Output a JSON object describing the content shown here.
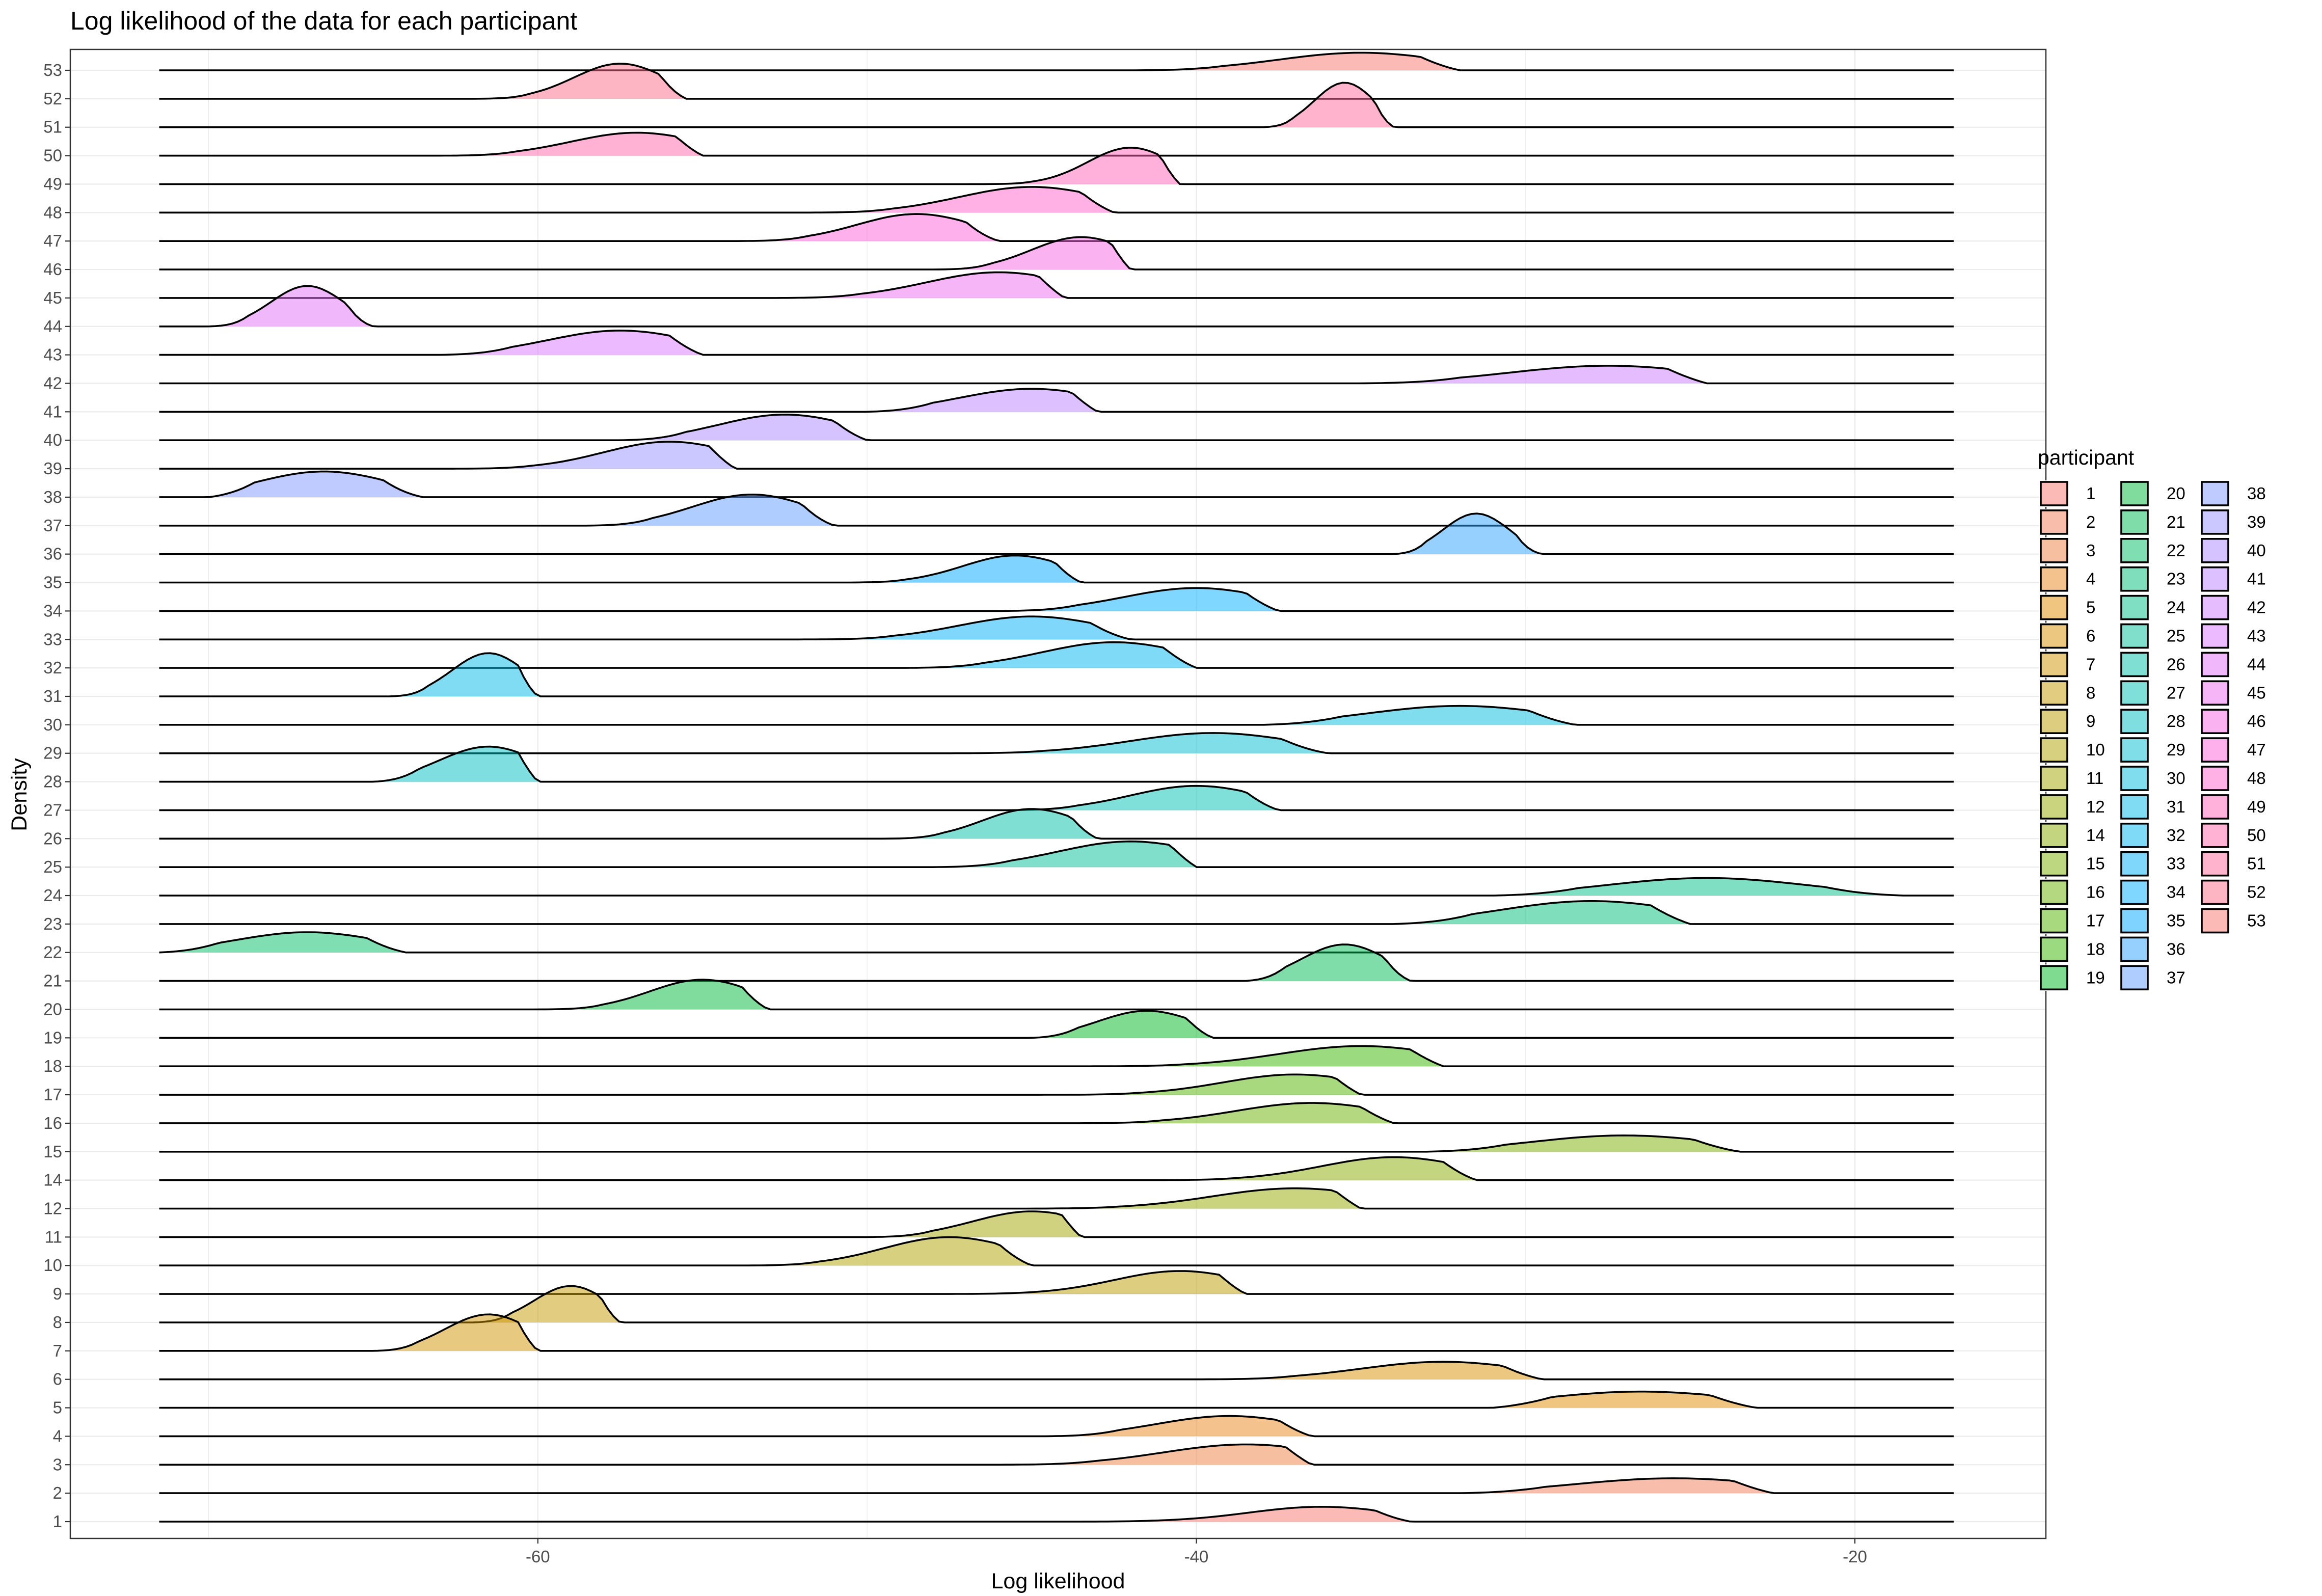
{
  "chart_data": {
    "type": "ridgeline",
    "title": "Log likelihood of the data for each participant",
    "xlabel": "Log likelihood",
    "ylabel": "Density",
    "xlim": [
      -74.2,
      -14.2
    ],
    "x_range": [
      -71.5,
      -17
    ],
    "x_ticks": [
      -60,
      -40,
      -20
    ],
    "x_tick_labels": [
      "-60",
      "-40",
      "-20"
    ],
    "grid": true,
    "legend_title": "participant",
    "legend_position": "right",
    "series": [
      {
        "name": "1",
        "color": "#F8766D",
        "peak": -36.2,
        "spread": 2.2,
        "height": 0.55,
        "lo": -45,
        "hi": -33.5
      },
      {
        "name": "2",
        "color": "#F37B59",
        "peak": -25.5,
        "spread": 3.0,
        "height": 0.55,
        "lo": -32,
        "hi": -22.5
      },
      {
        "name": "3",
        "color": "#ED8141",
        "peak": -38.5,
        "spread": 2.5,
        "height": 0.75,
        "lo": -46,
        "hi": -36.5
      },
      {
        "name": "4",
        "color": "#E7861B",
        "peak": -39,
        "spread": 2.2,
        "height": 0.75,
        "lo": -44.5,
        "hi": -36.5
      },
      {
        "name": "5",
        "color": "#DF8C00",
        "peak": -26.5,
        "spread": 3.0,
        "height": 0.6,
        "lo": -31,
        "hi": -23
      },
      {
        "name": "6",
        "color": "#D79000",
        "peak": -32.5,
        "spread": 2.5,
        "height": 0.65,
        "lo": -40,
        "hi": -29.5
      },
      {
        "name": "7",
        "color": "#CF9400",
        "peak": -61.5,
        "spread": 1.3,
        "height": 1.35,
        "lo": -65,
        "hi": -60
      },
      {
        "name": "8",
        "color": "#C59900",
        "peak": -59,
        "spread": 1.1,
        "height": 1.35,
        "lo": -62,
        "hi": -57.5
      },
      {
        "name": "9",
        "color": "#BB9D00",
        "peak": -40.5,
        "spread": 2.0,
        "height": 0.85,
        "lo": -49,
        "hi": -38.5
      },
      {
        "name": "10",
        "color": "#B0A100",
        "peak": -47.5,
        "spread": 2.0,
        "height": 1.05,
        "lo": -54,
        "hi": -45
      },
      {
        "name": "11",
        "color": "#A3A500",
        "peak": -45,
        "spread": 1.8,
        "height": 0.95,
        "lo": -50,
        "hi": -43.5
      },
      {
        "name": "12",
        "color": "#96A900",
        "peak": -37,
        "spread": 2.5,
        "height": 0.75,
        "lo": -46,
        "hi": -35
      },
      {
        "name": "14",
        "color": "#88AC00",
        "peak": -34,
        "spread": 2.2,
        "height": 0.85,
        "lo": -42,
        "hi": -31.5
      },
      {
        "name": "15",
        "color": "#79AF00",
        "peak": -27,
        "spread": 2.8,
        "height": 0.6,
        "lo": -33,
        "hi": -23.5
      },
      {
        "name": "16",
        "color": "#68B200",
        "peak": -36.5,
        "spread": 2.3,
        "height": 0.75,
        "lo": -44,
        "hi": -34
      },
      {
        "name": "17",
        "color": "#53B400",
        "peak": -37,
        "spread": 2.2,
        "height": 0.75,
        "lo": -45,
        "hi": -35
      },
      {
        "name": "18",
        "color": "#39B600",
        "peak": -35,
        "spread": 2.5,
        "height": 0.75,
        "lo": -44,
        "hi": -32.5
      },
      {
        "name": "19",
        "color": "#00B81F",
        "peak": -41.5,
        "spread": 1.5,
        "height": 1.0,
        "lo": -45,
        "hi": -39.5
      },
      {
        "name": "20",
        "color": "#00BA3C",
        "peak": -55,
        "spread": 1.6,
        "height": 1.1,
        "lo": -60,
        "hi": -53
      },
      {
        "name": "21",
        "color": "#00BB53",
        "peak": -35.5,
        "spread": 1.3,
        "height": 1.35,
        "lo": -38.5,
        "hi": -33.5
      },
      {
        "name": "22",
        "color": "#00BD66",
        "peak": -67,
        "spread": 2.2,
        "height": 0.75,
        "lo": -71.5,
        "hi": -64
      },
      {
        "name": "23",
        "color": "#00BE77",
        "peak": -28,
        "spread": 2.8,
        "height": 0.85,
        "lo": -34,
        "hi": -25
      },
      {
        "name": "24",
        "color": "#00BF88",
        "peak": -24.5,
        "spread": 3.0,
        "height": 0.65,
        "lo": -31,
        "hi": -18.5
      },
      {
        "name": "25",
        "color": "#00C097",
        "peak": -42,
        "spread": 2.2,
        "height": 0.95,
        "lo": -48,
        "hi": -40
      },
      {
        "name": "26",
        "color": "#00C0A6",
        "peak": -45,
        "spread": 1.5,
        "height": 1.1,
        "lo": -49.5,
        "hi": -43
      },
      {
        "name": "27",
        "color": "#00C0B4",
        "peak": -40,
        "spread": 2.0,
        "height": 0.9,
        "lo": -46,
        "hi": -37.5
      },
      {
        "name": "28",
        "color": "#00BFC2",
        "peak": -61.5,
        "spread": 1.5,
        "height": 1.3,
        "lo": -65,
        "hi": -60
      },
      {
        "name": "29",
        "color": "#00BECF",
        "peak": -39.5,
        "spread": 2.5,
        "height": 0.75,
        "lo": -48,
        "hi": -36
      },
      {
        "name": "30",
        "color": "#00BCDB",
        "peak": -32,
        "spread": 2.8,
        "height": 0.7,
        "lo": -38,
        "hi": -28.5
      },
      {
        "name": "31",
        "color": "#00B9E6",
        "peak": -61.5,
        "spread": 1.1,
        "height": 1.6,
        "lo": -64.5,
        "hi": -60
      },
      {
        "name": "32",
        "color": "#00B6F0",
        "peak": -42.5,
        "spread": 2.2,
        "height": 0.95,
        "lo": -49,
        "hi": -40
      },
      {
        "name": "33",
        "color": "#00B2F9",
        "peak": -45,
        "spread": 2.2,
        "height": 0.85,
        "lo": -52,
        "hi": -42
      },
      {
        "name": "34",
        "color": "#00ADFF",
        "peak": -40,
        "spread": 2.2,
        "height": 0.85,
        "lo": -46,
        "hi": -37.5
      },
      {
        "name": "35",
        "color": "#00A8FF",
        "peak": -45.5,
        "spread": 1.6,
        "height": 1.0,
        "lo": -51,
        "hi": -43.5
      },
      {
        "name": "36",
        "color": "#2CA2FF",
        "peak": -31.5,
        "spread": 1.0,
        "height": 1.5,
        "lo": -34,
        "hi": -29.5
      },
      {
        "name": "37",
        "color": "#619CFF",
        "peak": -53.5,
        "spread": 1.8,
        "height": 1.15,
        "lo": -58.5,
        "hi": -51
      },
      {
        "name": "38",
        "color": "#7F96FF",
        "peak": -66.5,
        "spread": 2.0,
        "height": 0.95,
        "lo": -70,
        "hi": -63.5
      },
      {
        "name": "39",
        "color": "#978FFF",
        "peak": -56,
        "spread": 2.0,
        "height": 1.0,
        "lo": -63,
        "hi": -54
      },
      {
        "name": "40",
        "color": "#AB88FF",
        "peak": -52.5,
        "spread": 2.0,
        "height": 0.95,
        "lo": -57.5,
        "hi": -50
      },
      {
        "name": "41",
        "color": "#BC81FF",
        "peak": -45,
        "spread": 2.2,
        "height": 0.85,
        "lo": -50,
        "hi": -43
      },
      {
        "name": "42",
        "color": "#CB7BFF",
        "peak": -27.5,
        "spread": 3.0,
        "height": 0.65,
        "lo": -35,
        "hi": -24.5
      },
      {
        "name": "43",
        "color": "#D875FF",
        "peak": -57.5,
        "spread": 2.2,
        "height": 0.9,
        "lo": -63,
        "hi": -55
      },
      {
        "name": "44",
        "color": "#E370F8",
        "peak": -67,
        "spread": 1.1,
        "height": 1.5,
        "lo": -70,
        "hi": -65
      },
      {
        "name": "45",
        "color": "#ED6BEF",
        "peak": -46,
        "spread": 2.2,
        "height": 0.95,
        "lo": -53,
        "hi": -44
      },
      {
        "name": "46",
        "color": "#F566E4",
        "peak": -43.5,
        "spread": 1.5,
        "height": 1.2,
        "lo": -48,
        "hi": -42
      },
      {
        "name": "47",
        "color": "#FB61D7",
        "peak": -48.5,
        "spread": 1.8,
        "height": 1.0,
        "lo": -54,
        "hi": -46
      },
      {
        "name": "48",
        "color": "#FF62C9",
        "peak": -45,
        "spread": 2.2,
        "height": 0.95,
        "lo": -52,
        "hi": -42.5
      },
      {
        "name": "49",
        "color": "#FF63BA",
        "peak": -42,
        "spread": 1.3,
        "height": 1.35,
        "lo": -47,
        "hi": -40.5
      },
      {
        "name": "50",
        "color": "#FF65AA",
        "peak": -57,
        "spread": 2.0,
        "height": 0.85,
        "lo": -63,
        "hi": -55
      },
      {
        "name": "51",
        "color": "#FF6799",
        "peak": -35.5,
        "spread": 0.9,
        "height": 1.65,
        "lo": -38,
        "hi": -34
      },
      {
        "name": "52",
        "color": "#FD6B87",
        "peak": -57.5,
        "spread": 1.4,
        "height": 1.3,
        "lo": -62,
        "hi": -55.5
      },
      {
        "name": "53",
        "color": "#F8766D",
        "peak": -35,
        "spread": 2.5,
        "height": 0.65,
        "lo": -42,
        "hi": -32
      }
    ]
  }
}
